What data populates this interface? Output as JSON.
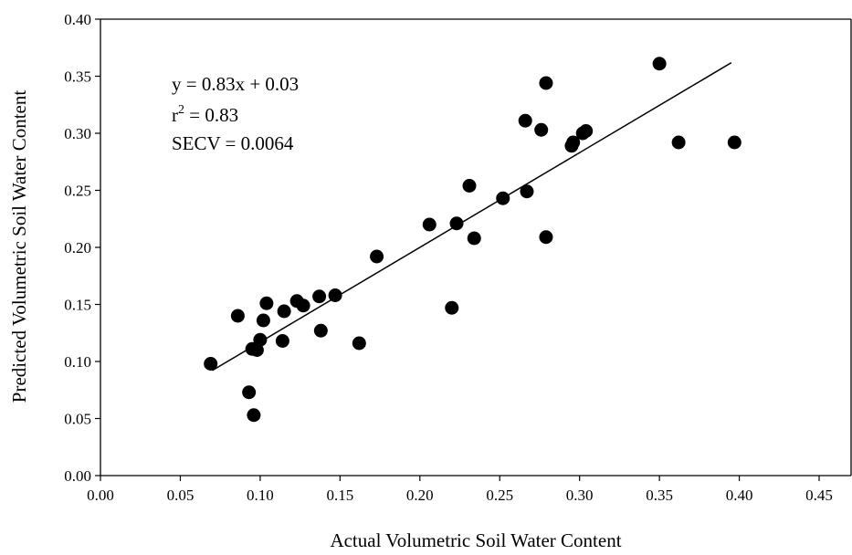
{
  "chart_data": {
    "type": "scatter",
    "title": "",
    "xlabel": "Actual Volumetric Soil Water Content",
    "ylabel": "Predicted Volumetric Soil Water Content",
    "xlim": [
      0.0,
      0.47
    ],
    "ylim": [
      0.0,
      0.4
    ],
    "xticks": [
      "0.00",
      "0.05",
      "0.10",
      "0.15",
      "0.20",
      "0.25",
      "0.30",
      "0.35",
      "0.40",
      "0.45"
    ],
    "yticks": [
      "0.00",
      "0.05",
      "0.10",
      "0.15",
      "0.20",
      "0.25",
      "0.30",
      "0.35",
      "0.40"
    ],
    "grid": false,
    "point_color": "#000000",
    "annotations": {
      "equation": "y = 0.83x + 0.03",
      "r2_prefix": "r",
      "r2_exp": "2",
      "r2_value": " = 0.83",
      "secv": "SECV = 0.0064"
    },
    "regression": {
      "slope": 0.83,
      "intercept": 0.034,
      "x_start": 0.07,
      "x_end": 0.395
    },
    "points": [
      {
        "x": 0.069,
        "y": 0.098
      },
      {
        "x": 0.086,
        "y": 0.14
      },
      {
        "x": 0.093,
        "y": 0.073
      },
      {
        "x": 0.095,
        "y": 0.111
      },
      {
        "x": 0.096,
        "y": 0.053
      },
      {
        "x": 0.098,
        "y": 0.11
      },
      {
        "x": 0.1,
        "y": 0.119
      },
      {
        "x": 0.102,
        "y": 0.136
      },
      {
        "x": 0.104,
        "y": 0.151
      },
      {
        "x": 0.114,
        "y": 0.118
      },
      {
        "x": 0.115,
        "y": 0.144
      },
      {
        "x": 0.123,
        "y": 0.153
      },
      {
        "x": 0.127,
        "y": 0.149
      },
      {
        "x": 0.137,
        "y": 0.157
      },
      {
        "x": 0.138,
        "y": 0.127
      },
      {
        "x": 0.147,
        "y": 0.158
      },
      {
        "x": 0.162,
        "y": 0.116
      },
      {
        "x": 0.173,
        "y": 0.192
      },
      {
        "x": 0.206,
        "y": 0.22
      },
      {
        "x": 0.22,
        "y": 0.147
      },
      {
        "x": 0.223,
        "y": 0.221
      },
      {
        "x": 0.231,
        "y": 0.254
      },
      {
        "x": 0.234,
        "y": 0.208
      },
      {
        "x": 0.252,
        "y": 0.243
      },
      {
        "x": 0.266,
        "y": 0.311
      },
      {
        "x": 0.267,
        "y": 0.249
      },
      {
        "x": 0.276,
        "y": 0.303
      },
      {
        "x": 0.279,
        "y": 0.344
      },
      {
        "x": 0.279,
        "y": 0.209
      },
      {
        "x": 0.295,
        "y": 0.289
      },
      {
        "x": 0.296,
        "y": 0.292
      },
      {
        "x": 0.302,
        "y": 0.3
      },
      {
        "x": 0.304,
        "y": 0.302
      },
      {
        "x": 0.35,
        "y": 0.361
      },
      {
        "x": 0.362,
        "y": 0.292
      },
      {
        "x": 0.397,
        "y": 0.292
      }
    ]
  }
}
